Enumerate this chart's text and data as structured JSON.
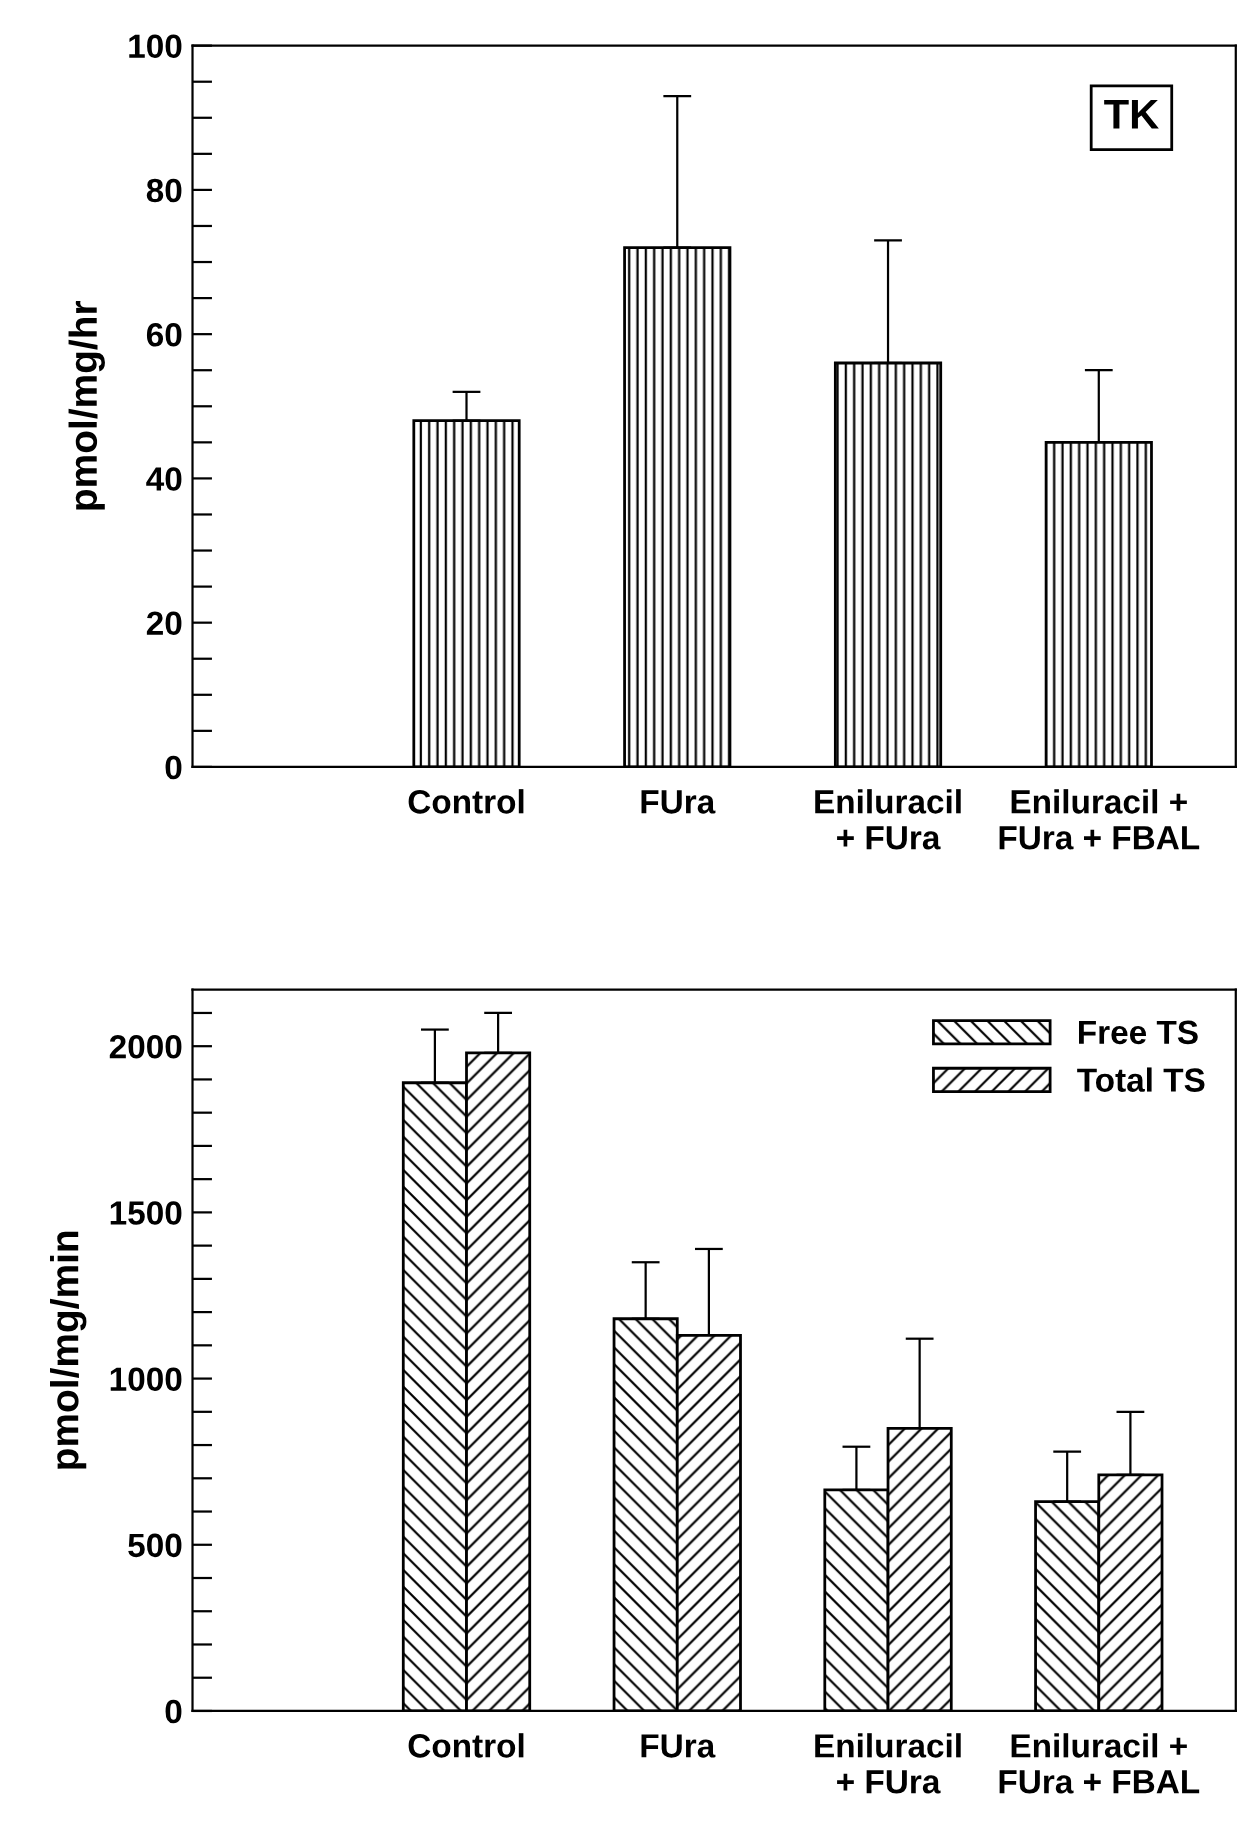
{
  "chart_data": [
    {
      "type": "bar",
      "ylabel": "pmol/mg/hr",
      "categories": [
        "Control",
        "FUra",
        "Eniluracil\n+ FUra",
        "Eniluracil +\nFUra + FBAL"
      ],
      "series": [
        {
          "color": "#000000",
          "values": [
            48,
            72,
            56,
            45
          ],
          "errors": [
            4,
            21,
            17,
            10
          ]
        }
      ],
      "annotations": [
        "TK"
      ],
      "ylim": [
        0,
        100
      ],
      "yticks": [
        0,
        {
          "value": 5,
          "label": null
        },
        {
          "value": 10,
          "label": null
        },
        {
          "value": 15,
          "label": null
        },
        20,
        {
          "value": 25,
          "label": null
        },
        {
          "value": 30,
          "label": null
        },
        {
          "value": 35,
          "label": null
        },
        40,
        {
          "value": 45,
          "label": null
        },
        {
          "value": 50,
          "label": null
        },
        {
          "value": 55,
          "label": null
        },
        60,
        {
          "value": 65,
          "label": null
        },
        {
          "value": 70,
          "label": null
        },
        {
          "value": 75,
          "label": null
        },
        80,
        {
          "value": 85,
          "label": null
        },
        {
          "value": 90,
          "label": null
        },
        {
          "value": 95,
          "label": null
        },
        100
      ],
      "grid": false,
      "legend": false
    },
    {
      "type": "bar",
      "ylabel": "pmol/mg/min",
      "categories": [
        "Control",
        "FUra",
        "Eniluracil\n+ FUra",
        "Eniluracil +\nFUra + FBAL"
      ],
      "series": [
        {
          "name": "Free TS",
          "color": "#000000",
          "values": [
            1890,
            1180,
            665,
            630
          ],
          "errors": [
            160,
            170,
            130,
            150
          ]
        },
        {
          "name": "Total TS",
          "color": "#000000",
          "values": [
            1980,
            1130,
            850,
            710
          ],
          "errors": [
            120,
            260,
            270,
            190
          ]
        }
      ],
      "ylim": [
        0,
        2170
      ],
      "yticks": [
        0,
        {
          "value": 100,
          "label": null
        },
        {
          "value": 200,
          "label": null
        },
        {
          "value": 300,
          "label": null
        },
        {
          "value": 400,
          "label": null
        },
        500,
        {
          "value": 600,
          "label": null
        },
        {
          "value": 700,
          "label": null
        },
        {
          "value": 800,
          "label": null
        },
        {
          "value": 900,
          "label": null
        },
        1000,
        {
          "value": 1100,
          "label": null
        },
        {
          "value": 1200,
          "label": null
        },
        {
          "value": 1300,
          "label": null
        },
        {
          "value": 1400,
          "label": null
        },
        1500,
        {
          "value": 1600,
          "label": null
        },
        {
          "value": 1700,
          "label": null
        },
        {
          "value": 1800,
          "label": null
        },
        {
          "value": 1900,
          "label": null
        },
        2000,
        {
          "value": 2100,
          "label": null
        }
      ],
      "grid": false,
      "legend": "top right"
    }
  ]
}
